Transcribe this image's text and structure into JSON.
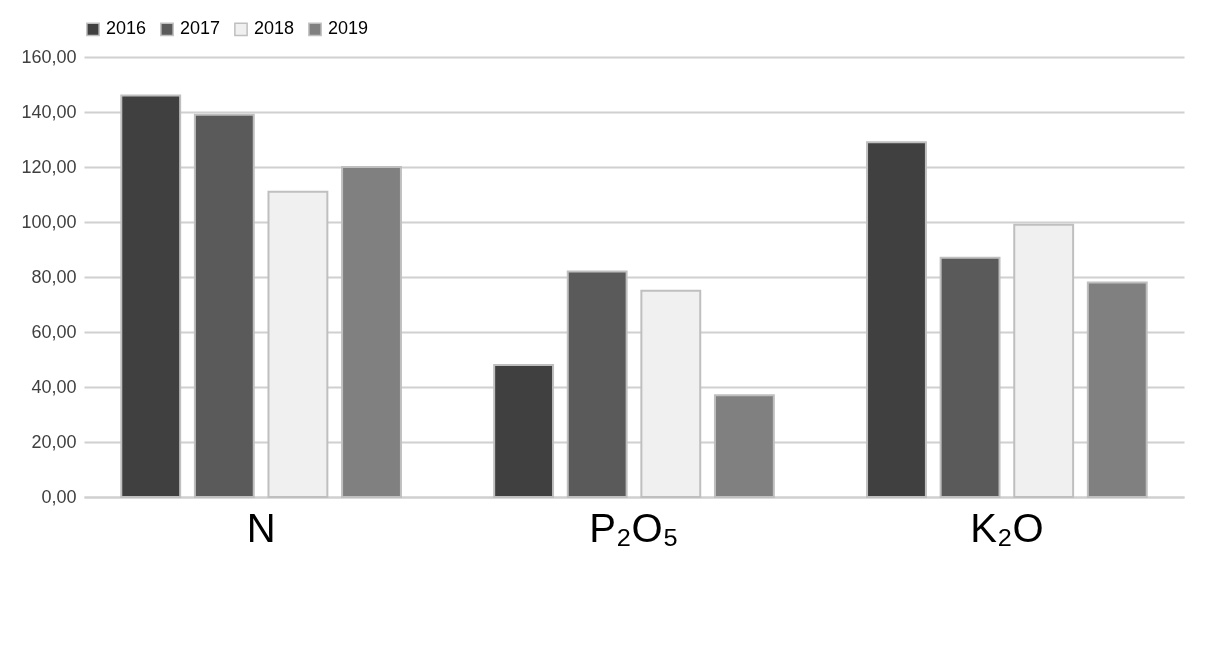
{
  "chart_data": {
    "type": "bar",
    "categories": [
      "N",
      "P₂O₅",
      "K₂O"
    ],
    "series": [
      {
        "name": "2016",
        "color": "#404040",
        "values": [
          146,
          48,
          129
        ]
      },
      {
        "name": "2017",
        "color": "#5a5a5a",
        "values": [
          139,
          82,
          87
        ]
      },
      {
        "name": "2018",
        "color": "#f0f0f0",
        "values": [
          111,
          75,
          99
        ]
      },
      {
        "name": "2019",
        "color": "#808080",
        "values": [
          120,
          37,
          78
        ]
      }
    ],
    "ylim": [
      0,
      160
    ],
    "yticks": [
      {
        "value": 0,
        "label": "0,00"
      },
      {
        "value": 20,
        "label": "20,00"
      },
      {
        "value": 40,
        "label": "40,00"
      },
      {
        "value": 60,
        "label": "60,00"
      },
      {
        "value": 80,
        "label": "80,00"
      },
      {
        "value": 100,
        "label": "100,00"
      },
      {
        "value": 120,
        "label": "120,00"
      },
      {
        "value": 140,
        "label": "140,00"
      },
      {
        "value": 160,
        "label": "160,00"
      }
    ],
    "grid": "y",
    "legend": "top"
  }
}
